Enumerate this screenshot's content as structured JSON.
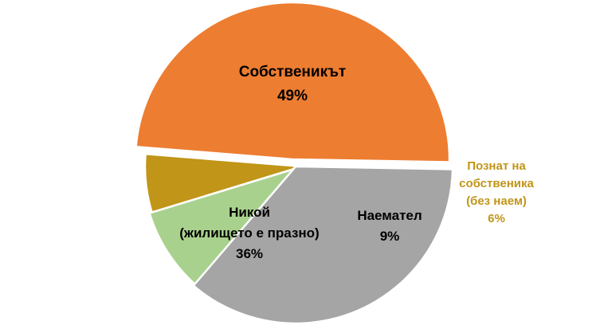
{
  "chart_data": {
    "type": "pie",
    "slices": [
      {
        "label_lines": [
          "Собственикът"
        ],
        "value": 49,
        "value_label": "49%",
        "color": "#ED7D31",
        "label_color": "#000000"
      },
      {
        "label_lines": [
          "Познат на",
          "собственика",
          "(без наем)"
        ],
        "value": 6,
        "value_label": "6%",
        "color": "#C19518",
        "label_color": "#C19518"
      },
      {
        "label_lines": [
          "Наемател"
        ],
        "value": 9,
        "value_label": "9%",
        "color": "#A9D18E",
        "label_color": "#000000"
      },
      {
        "label_lines": [
          "Никой",
          "(жилището е празно)"
        ],
        "value": 36,
        "value_label": "36%",
        "color": "#A5A5A5",
        "label_color": "#000000"
      }
    ],
    "legend": "none"
  }
}
